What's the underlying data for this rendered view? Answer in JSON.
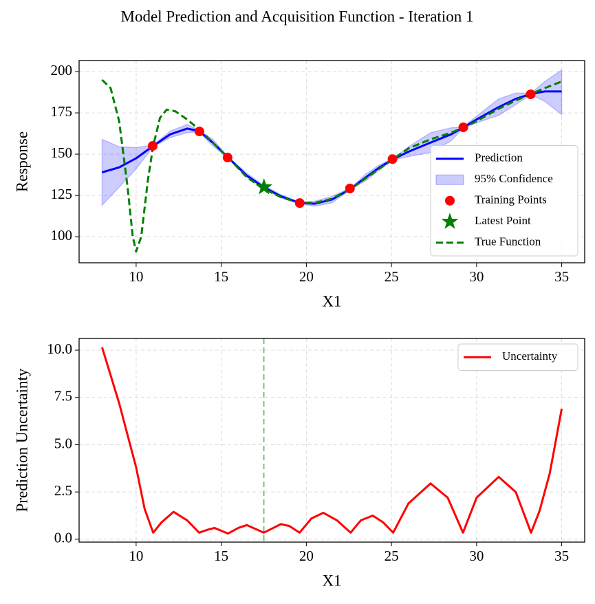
{
  "title": "Model Prediction and Acquisition Function - Iteration 1",
  "chart_data": [
    {
      "type": "line",
      "xlabel": "X1",
      "ylabel": "Response",
      "xlim": [
        6.65,
        36.35
      ],
      "ylim": [
        84.2,
        206.7
      ],
      "xticks": [
        10,
        15,
        20,
        25,
        30,
        35
      ],
      "yticks": [
        100,
        125,
        150,
        175,
        200
      ],
      "grid": true,
      "legend": "lower right",
      "series": [
        {
          "name": "Prediction",
          "type": "line",
          "color": "#0000ff",
          "x": [
            8,
            9,
            10,
            11,
            12,
            13,
            13.7,
            14.5,
            15.4,
            16.5,
            17.5,
            18.5,
            19.6,
            20.5,
            21.5,
            22.6,
            23.5,
            24.3,
            25.1,
            26,
            27.3,
            28.5,
            29.2,
            30,
            31.3,
            32.3,
            33.2,
            34,
            35
          ],
          "values": [
            139,
            142,
            147.5,
            155,
            162,
            165.5,
            164,
            157,
            148,
            137,
            130,
            124.5,
            120.5,
            120,
            122.5,
            129,
            136,
            142,
            147,
            151.5,
            157,
            162,
            166,
            171,
            178.5,
            183.5,
            186.5,
            188,
            188
          ]
        },
        {
          "name": "95% Confidence",
          "type": "area",
          "color": "#0000ff",
          "x": [
            8,
            9,
            10,
            11,
            12,
            13,
            13.7,
            14.5,
            15.4,
            16.5,
            17.5,
            18.5,
            19.6,
            20.5,
            21.5,
            22.6,
            23.5,
            24.3,
            25.1,
            26,
            27.3,
            28.5,
            29.2,
            30,
            31.3,
            32.3,
            33.2,
            34,
            35
          ],
          "lower": [
            119,
            130,
            141,
            154.5,
            160,
            163,
            163.5,
            155,
            147.5,
            136,
            129,
            123.5,
            120,
            118.5,
            120.5,
            128.5,
            134,
            140.5,
            146.5,
            148.5,
            151,
            158,
            165.5,
            169,
            173.5,
            180,
            186,
            182,
            174
          ],
          "upper": [
            159,
            154.5,
            154,
            155.5,
            164,
            168,
            164.5,
            159,
            148.5,
            138.5,
            131,
            125.5,
            121,
            121.5,
            124.5,
            129.5,
            138,
            143.5,
            147.5,
            154.5,
            163,
            166,
            166.5,
            173,
            183.5,
            187,
            187,
            194,
            201
          ]
        },
        {
          "name": "Training Points",
          "type": "scatter",
          "marker": "circle",
          "color": "#ff0000",
          "x": [
            10.97,
            13.72,
            15.37,
            19.61,
            22.56,
            25.06,
            29.22,
            33.18
          ],
          "values": [
            155,
            163.75,
            148,
            120.4,
            129.2,
            147,
            166.25,
            186.25
          ]
        },
        {
          "name": "Latest Point",
          "type": "scatter",
          "marker": "star",
          "color": "#008000",
          "x": [
            17.51
          ],
          "values": [
            130
          ]
        },
        {
          "name": "True Function",
          "type": "line",
          "linestyle": "dashed",
          "color": "#008000",
          "x": [
            8,
            8.5,
            9,
            9.5,
            9.8,
            10,
            10.3,
            10.7,
            11,
            11.4,
            11.8,
            12.3,
            13,
            13.7,
            14.5,
            15.4,
            16.5,
            17.5,
            18.5,
            19.6,
            20.5,
            21.5,
            22.6,
            23.5,
            25.1,
            26,
            27.3,
            28.5,
            29.2,
            30,
            31.3,
            32.3,
            33.2,
            34,
            35
          ],
          "values": [
            195,
            190,
            170,
            130,
            100,
            91,
            100,
            135,
            155,
            172,
            177,
            176,
            171,
            165,
            157,
            148,
            136,
            129,
            124,
            120.5,
            120.5,
            123,
            129,
            135.5,
            147,
            153.5,
            159,
            163,
            166,
            170,
            177.5,
            182.5,
            186.5,
            190,
            194
          ]
        }
      ]
    },
    {
      "type": "line",
      "xlabel": "X1",
      "ylabel": "Prediction Uncertainty",
      "xlim": [
        6.65,
        36.35
      ],
      "ylim": [
        -0.15,
        10.62
      ],
      "xticks": [
        10,
        15,
        20,
        25,
        30,
        35
      ],
      "yticks": [
        {
          "value": 0,
          "label": "0.0"
        },
        2.5,
        {
          "value": 5,
          "label": "5.0"
        },
        7.5,
        {
          "value": 10,
          "label": "10.0"
        }
      ],
      "grid": true,
      "legend": "upper right",
      "vline": {
        "x": 17.5,
        "color": "#008000"
      },
      "series": [
        {
          "name": "Uncertainty",
          "type": "line",
          "color": "#ff0000",
          "x": [
            8,
            9,
            10,
            10.5,
            11,
            11.5,
            12.2,
            13,
            13.7,
            14.2,
            14.6,
            15.4,
            16,
            16.5,
            17.5,
            18.5,
            19,
            19.6,
            20.3,
            21,
            21.8,
            22.6,
            23.2,
            23.9,
            24.5,
            25.1,
            26,
            27.3,
            28.3,
            29.2,
            30,
            31.3,
            32.3,
            33.2,
            33.7,
            34.3,
            35
          ],
          "values": [
            10.15,
            7.2,
            3.8,
            1.6,
            0.35,
            0.9,
            1.45,
            1.0,
            0.35,
            0.5,
            0.6,
            0.3,
            0.6,
            0.75,
            0.35,
            0.8,
            0.7,
            0.35,
            1.1,
            1.4,
            1.0,
            0.35,
            1.0,
            1.25,
            0.9,
            0.35,
            1.9,
            2.95,
            2.2,
            0.35,
            2.2,
            3.3,
            2.5,
            0.35,
            1.5,
            3.5,
            6.9
          ]
        }
      ]
    }
  ]
}
